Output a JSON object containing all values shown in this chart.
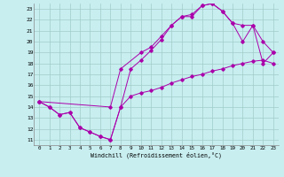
{
  "xlabel": "Windchill (Refroidissement éolien,°C)",
  "xlim": [
    -0.5,
    23.5
  ],
  "ylim": [
    10.5,
    23.5
  ],
  "xticks": [
    0,
    1,
    2,
    3,
    4,
    5,
    6,
    7,
    8,
    9,
    10,
    11,
    12,
    13,
    14,
    15,
    16,
    17,
    18,
    19,
    20,
    21,
    22,
    23
  ],
  "yticks": [
    11,
    12,
    13,
    14,
    15,
    16,
    17,
    18,
    19,
    20,
    21,
    22,
    23
  ],
  "bg_color": "#c8eef0",
  "line_color": "#aa00aa",
  "grid_color": "#a0ccc8",
  "line1_x": [
    0,
    1,
    2,
    3,
    4,
    5,
    6,
    7,
    8,
    9,
    10,
    11,
    12,
    13,
    14,
    15,
    16,
    17,
    18,
    19,
    20,
    21,
    22,
    23
  ],
  "line1_y": [
    14.5,
    14.0,
    13.3,
    13.5,
    12.1,
    11.7,
    11.3,
    11.0,
    14.0,
    17.5,
    18.3,
    19.2,
    20.2,
    21.5,
    22.3,
    22.3,
    23.3,
    23.5,
    22.8,
    21.7,
    20.0,
    21.5,
    18.0,
    19.0
  ],
  "line2_x": [
    0,
    7,
    8,
    10,
    11,
    12,
    13,
    14,
    15,
    16,
    17,
    18,
    19,
    20,
    21,
    22,
    23
  ],
  "line2_y": [
    14.5,
    14.0,
    17.5,
    19.0,
    19.5,
    20.5,
    21.5,
    22.3,
    22.5,
    23.3,
    23.5,
    22.8,
    21.7,
    21.5,
    21.5,
    20.0,
    19.0
  ],
  "line3_x": [
    0,
    1,
    2,
    3,
    4,
    5,
    6,
    7,
    8,
    9,
    10,
    11,
    12,
    13,
    14,
    15,
    16,
    17,
    18,
    19,
    20,
    21,
    22,
    23
  ],
  "line3_y": [
    14.5,
    14.0,
    13.3,
    13.5,
    12.1,
    11.7,
    11.3,
    11.0,
    14.0,
    15.0,
    15.3,
    15.5,
    15.8,
    16.2,
    16.5,
    16.8,
    17.0,
    17.3,
    17.5,
    17.8,
    18.0,
    18.2,
    18.3,
    18.0
  ]
}
